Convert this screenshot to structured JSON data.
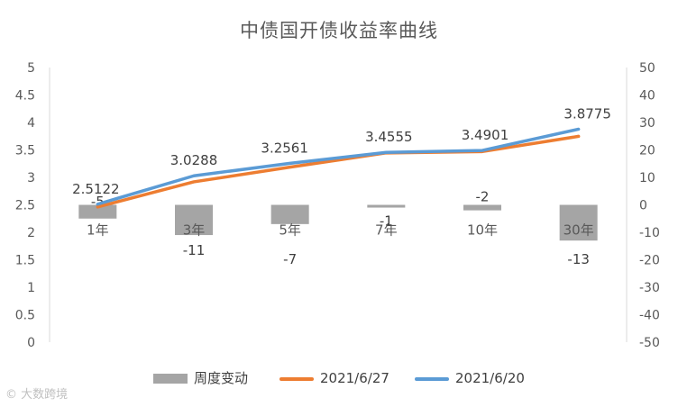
{
  "chart_data": {
    "type": "bar",
    "title": "中债国开债收益率曲线",
    "categories": [
      "1年",
      "3年",
      "5年",
      "7年",
      "10年",
      "30年"
    ],
    "y_left": {
      "ylim": [
        0,
        5
      ],
      "ticks": [
        "0",
        "0.5",
        "1",
        "1.5",
        "2",
        "2.5",
        "3",
        "3.5",
        "4",
        "4.5",
        "5"
      ]
    },
    "y_right": {
      "ylim": [
        -50,
        50
      ],
      "ticks": [
        "-50",
        "-40",
        "-30",
        "-20",
        "-10",
        "0",
        "10",
        "20",
        "30",
        "40",
        "50"
      ]
    },
    "series": [
      {
        "name": "周度变动",
        "type": "bar",
        "axis": "right",
        "color": "#a5a5a5",
        "values": [
          -5,
          -11,
          -7,
          -1,
          -2,
          -13
        ],
        "labels": [
          "-5",
          "-11",
          "-7",
          "-1",
          "-2",
          "-13"
        ]
      },
      {
        "name": "2021/6/27",
        "type": "line",
        "axis": "left",
        "color": "#ed7d31",
        "values": [
          2.4622,
          2.9188,
          3.1861,
          3.4455,
          3.4701,
          3.7475
        ]
      },
      {
        "name": "2021/6/20",
        "type": "line",
        "axis": "left",
        "color": "#5b9bd5",
        "values": [
          2.5122,
          3.0288,
          3.2561,
          3.4555,
          3.4901,
          3.8775
        ],
        "labels": [
          "2.5122",
          "3.0288",
          "3.2561",
          "3.4555",
          "3.4901",
          "3.8775"
        ]
      }
    ],
    "grid": false,
    "legend_position": "bottom"
  },
  "watermark": "大数跨境"
}
